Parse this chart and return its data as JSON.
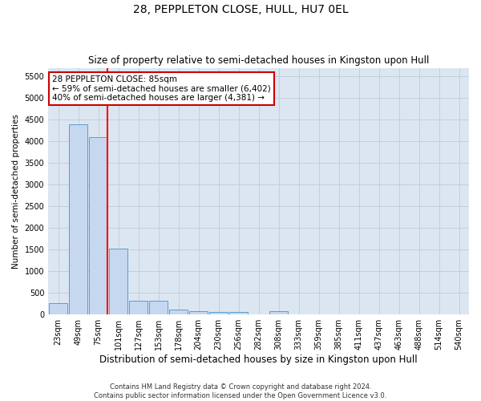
{
  "title": "28, PEPPLETON CLOSE, HULL, HU7 0EL",
  "subtitle": "Size of property relative to semi-detached houses in Kingston upon Hull",
  "xlabel": "Distribution of semi-detached houses by size in Kingston upon Hull",
  "ylabel": "Number of semi-detached properties",
  "footer_line1": "Contains HM Land Registry data © Crown copyright and database right 2024.",
  "footer_line2": "Contains public sector information licensed under the Open Government Licence v3.0.",
  "categories": [
    "23sqm",
    "49sqm",
    "75sqm",
    "101sqm",
    "127sqm",
    "153sqm",
    "178sqm",
    "204sqm",
    "230sqm",
    "256sqm",
    "282sqm",
    "308sqm",
    "333sqm",
    "359sqm",
    "385sqm",
    "411sqm",
    "437sqm",
    "463sqm",
    "488sqm",
    "514sqm",
    "540sqm"
  ],
  "values": [
    270,
    4400,
    4100,
    1520,
    320,
    320,
    110,
    75,
    65,
    60,
    0,
    70,
    0,
    0,
    0,
    0,
    0,
    0,
    0,
    0,
    0
  ],
  "bar_color": "#c5d8f0",
  "bar_edge_color": "#5b9bd5",
  "red_line_color": "#ff0000",
  "annotation_text": "28 PEPPLETON CLOSE: 85sqm\n← 59% of semi-detached houses are smaller (6,402)\n40% of semi-detached houses are larger (4,381) →",
  "annotation_box_color": "#ffffff",
  "annotation_box_edge_color": "#cc0000",
  "ylim": [
    0,
    5700
  ],
  "yticks": [
    0,
    500,
    1000,
    1500,
    2000,
    2500,
    3000,
    3500,
    4000,
    4500,
    5000,
    5500
  ],
  "grid_color": "#c0cfe0",
  "plot_bg_color": "#dce6f1",
  "title_fontsize": 10,
  "subtitle_fontsize": 8.5,
  "xlabel_fontsize": 8.5,
  "ylabel_fontsize": 7.5,
  "tick_fontsize": 7,
  "annotation_fontsize": 7.5,
  "footer_fontsize": 6
}
